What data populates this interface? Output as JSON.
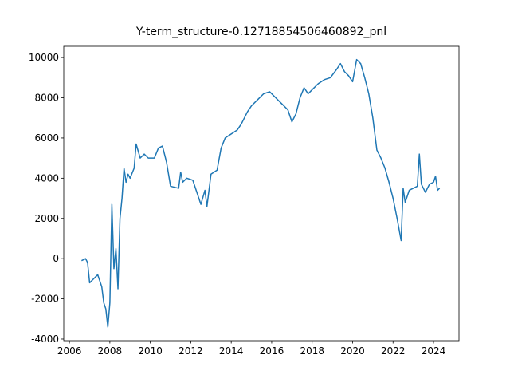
{
  "chart_data": {
    "type": "line",
    "title": "Y-term_structure-0.12718854506460892_pnl",
    "x": [
      2006.6,
      2006.8,
      2006.9,
      2007.0,
      2007.2,
      2007.4,
      2007.6,
      2007.7,
      2007.8,
      2007.9,
      2008.0,
      2008.1,
      2008.2,
      2008.3,
      2008.4,
      2008.5,
      2008.6,
      2008.7,
      2008.8,
      2008.9,
      2009.0,
      2009.2,
      2009.3,
      2009.5,
      2009.7,
      2009.9,
      2010.2,
      2010.4,
      2010.6,
      2010.8,
      2011.0,
      2011.4,
      2011.5,
      2011.6,
      2011.8,
      2012.1,
      2012.4,
      2012.5,
      2012.7,
      2012.8,
      2013.0,
      2013.3,
      2013.5,
      2013.7,
      2014.0,
      2014.3,
      2014.5,
      2014.8,
      2015.0,
      2015.3,
      2015.6,
      2015.9,
      2016.2,
      2016.5,
      2016.8,
      2017.0,
      2017.2,
      2017.4,
      2017.6,
      2017.8,
      2018.0,
      2018.3,
      2018.6,
      2018.9,
      2019.2,
      2019.4,
      2019.6,
      2019.8,
      2020.0,
      2020.2,
      2020.4,
      2020.6,
      2020.8,
      2021.0,
      2021.2,
      2021.4,
      2021.6,
      2021.8,
      2022.0,
      2022.2,
      2022.4,
      2022.5,
      2022.6,
      2022.8,
      2023.0,
      2023.2,
      2023.3,
      2023.4,
      2023.6,
      2023.8,
      2024.0,
      2024.1,
      2024.2,
      2024.3
    ],
    "series": [
      {
        "color": "#1f77b4",
        "values": [
          -100,
          0,
          -200,
          -1200,
          -1000,
          -800,
          -1400,
          -2200,
          -2500,
          -3400,
          -2200,
          2700,
          -500,
          500,
          -1500,
          2000,
          3000,
          4500,
          3800,
          4200,
          4000,
          4500,
          5700,
          5000,
          5200,
          5000,
          5000,
          5500,
          5600,
          4800,
          3600,
          3500,
          4300,
          3800,
          4000,
          3900,
          3000,
          2700,
          3400,
          2600,
          4200,
          4400,
          5500,
          6000,
          6200,
          6400,
          6700,
          7300,
          7600,
          7900,
          8200,
          8300,
          8000,
          7700,
          7400,
          6800,
          7200,
          8000,
          8500,
          8200,
          8400,
          8700,
          8900,
          9000,
          9400,
          9700,
          9300,
          9100,
          8800,
          9900,
          9700,
          9000,
          8200,
          7000,
          5400,
          5000,
          4500,
          3800,
          3000,
          2000,
          900,
          3500,
          2800,
          3400,
          3500,
          3600,
          5200,
          3700,
          3300,
          3700,
          3800,
          4100,
          3400,
          3500
        ]
      }
    ],
    "xlim": [
      2005.72,
      2025.26
    ],
    "xticks": [
      2006,
      2008,
      2010,
      2012,
      2014,
      2016,
      2018,
      2020,
      2022,
      2024
    ],
    "ylim": [
      -4080,
      10560
    ],
    "yticks": [
      -4000,
      -2000,
      0,
      2000,
      4000,
      6000,
      8000,
      10000
    ]
  }
}
